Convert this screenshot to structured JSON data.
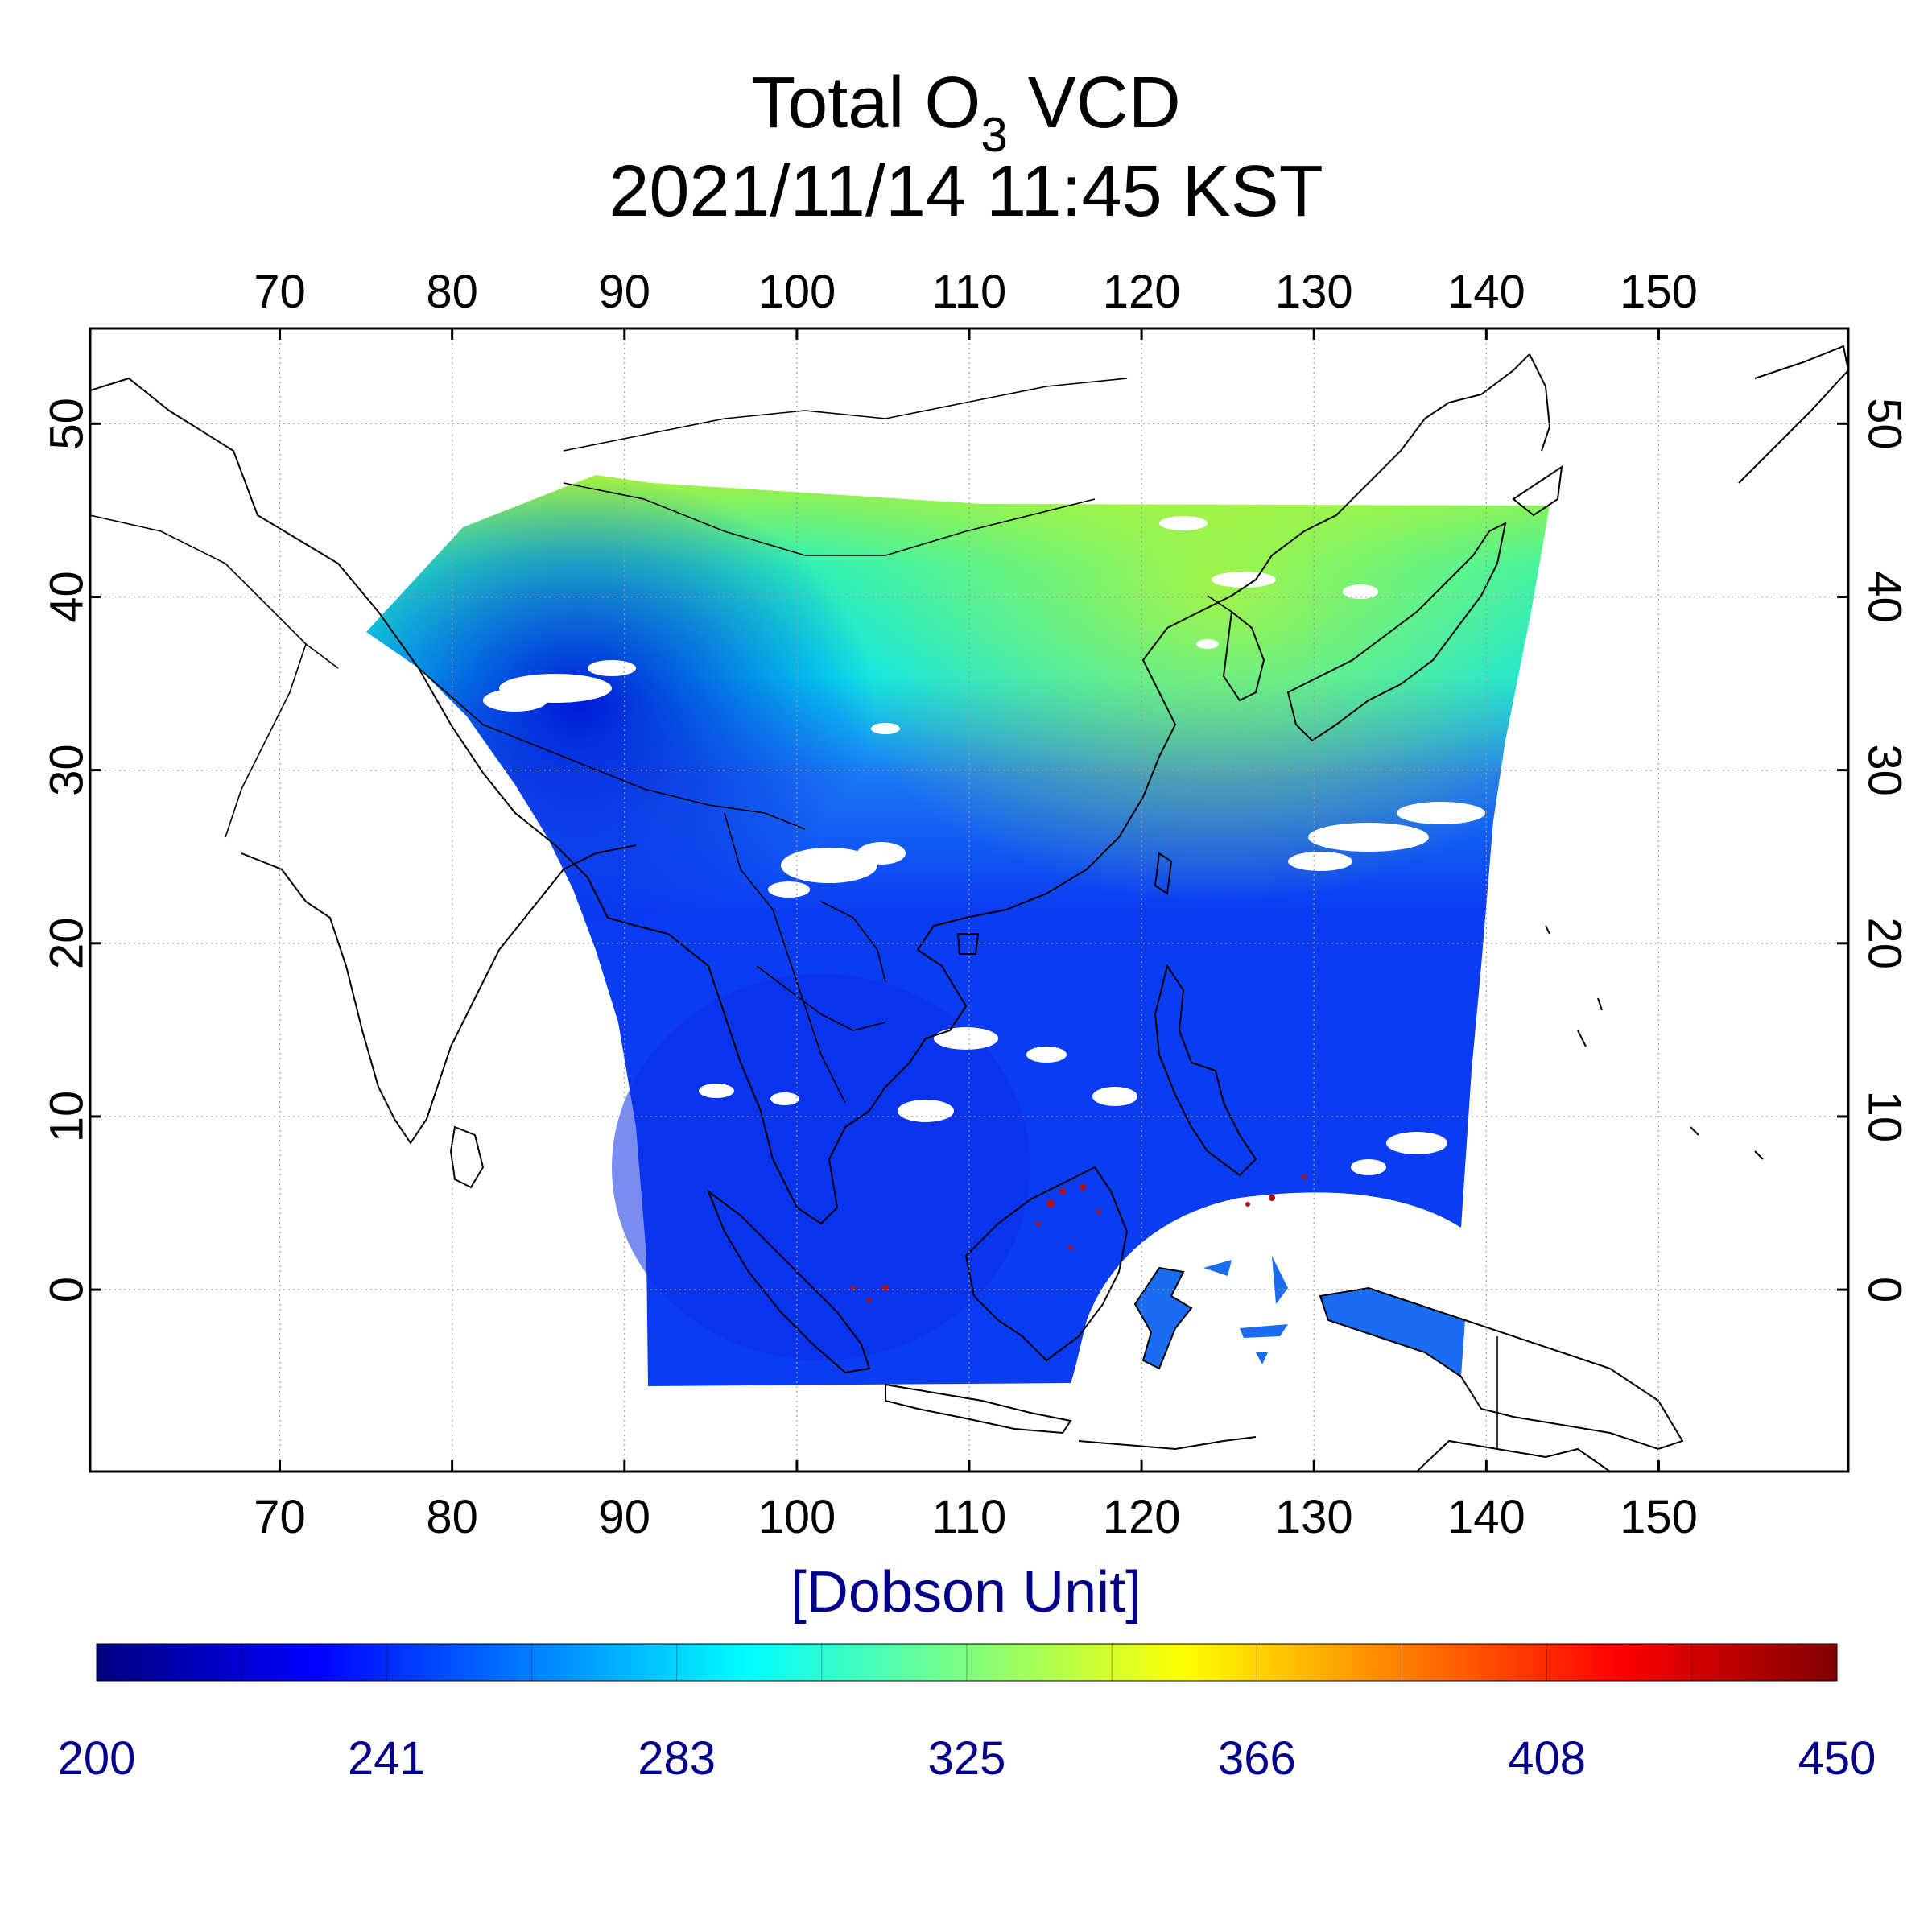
{
  "title": {
    "line1_prefix": "Total O",
    "line1_subscript": "3",
    "line1_suffix": " VCD",
    "line2": "2021/11/14 11:45 KST"
  },
  "map": {
    "lon_ticks": [
      "70",
      "80",
      "90",
      "100",
      "110",
      "120",
      "130",
      "140",
      "150"
    ],
    "lat_ticks": [
      "0",
      "10",
      "20",
      "30",
      "40",
      "50"
    ],
    "lon_range": [
      59,
      161
    ],
    "lat_range": [
      -10.5,
      55.5
    ],
    "grid": true,
    "grid_style": "dotted",
    "field_colors": {
      "deep_blue": "#0010e0",
      "blue": "#0a3cf2",
      "light_blue": "#1a78f5",
      "cyan": "#06e6f0",
      "aqua_green": "#2cf2b8",
      "yellow_green": "#a8f23c",
      "cloud": "#ffffff",
      "high_ozone_points": "#b01010"
    }
  },
  "colorbar": {
    "unit_label": "[Dobson Unit]",
    "tick_labels": [
      "200",
      "241",
      "283",
      "325",
      "366",
      "408",
      "450"
    ],
    "range": [
      200,
      450
    ],
    "colormap": [
      "#00007f",
      "#0000ff",
      "#007fff",
      "#00ffff",
      "#7fff7f",
      "#ffff00",
      "#ff7f00",
      "#ff0000",
      "#7f0000"
    ],
    "label_color": "#00008b"
  }
}
